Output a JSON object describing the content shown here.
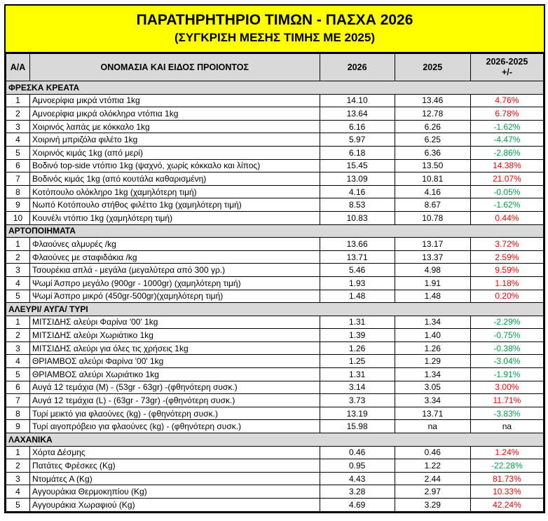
{
  "header": {
    "title": "ΠΑΡΑΤΗΡΗΤΗΡΙΟ ΤΙΜΩΝ - ΠΑΣΧΑ 2026",
    "subtitle": "(ΣΥΓΚΡΙΣΗ ΜΕΣΗΣ ΤΙΜΗΣ ΜΕ 2025)"
  },
  "columns": {
    "aa": "Α/Α",
    "name": "ΟΝΟΜΑΣΙΑ ΚΑΙ ΕΙΔΟΣ ΠΡΟΙΟΝΤΟΣ",
    "y2026": "2026",
    "y2025": "2025",
    "diff_line1": "2026-2025",
    "diff_line2": "+/-"
  },
  "colors": {
    "increase": "#ff0000",
    "decrease": "#00a04a",
    "title_bg": "#ffff00",
    "header_bg": "#d9d9d9"
  },
  "categories": [
    {
      "name": "ΦΡΕΣΚΑ ΚΡΕΑΤΑ",
      "items": [
        {
          "aa": "1",
          "name": "Αμνοερίφια μικρά ντόπια 1kg",
          "v2026": "14.10",
          "v2025": "13.46",
          "diff": "4.76%",
          "trend": "pos"
        },
        {
          "aa": "2",
          "name": "Αμνοερίφια μικρά ολόκληρα ντόπια 1kg",
          "v2026": "13.64",
          "v2025": "12.78",
          "diff": "6.78%",
          "trend": "pos"
        },
        {
          "aa": "3",
          "name": "Χοιρινός λαπάς με κόκκαλο 1kg",
          "v2026": "6.16",
          "v2025": "6.26",
          "diff": "-1.62%",
          "trend": "neg"
        },
        {
          "aa": "4",
          "name": "Χοιρινή μπριζόλα φιλέτο 1kg",
          "v2026": "5.97",
          "v2025": "6.25",
          "diff": "-4.47%",
          "trend": "neg"
        },
        {
          "aa": "5",
          "name": "Χοιρινός κιμάς 1kg (από μερί)",
          "v2026": "6.18",
          "v2025": "6.36",
          "diff": "-2.86%",
          "trend": "neg"
        },
        {
          "aa": "6",
          "name": "Βοδινό top-side ντόπιο 1kg (ψαχνό, χωρίς κόκκαλο και λίπος)",
          "v2026": "15.45",
          "v2025": "13.50",
          "diff": "14.38%",
          "trend": "pos"
        },
        {
          "aa": "7",
          "name": "Βοδινός κιμάς 1kg (από κουτάλα καθαρισμένη)",
          "v2026": "13.09",
          "v2025": "10.81",
          "diff": "21.07%",
          "trend": "pos"
        },
        {
          "aa": "8",
          "name": "Κοτόπουλο ολόκληρο 1kg (χαμηλότερη τιμή)",
          "v2026": "4.16",
          "v2025": "4.16",
          "diff": "-0.05%",
          "trend": "neg"
        },
        {
          "aa": "9",
          "name": "Νωπό Κοτόπουλο στήθος φιλέττο 1kg (χαμηλότερη τιμή)",
          "v2026": "8.53",
          "v2025": "8.67",
          "diff": "-1.62%",
          "trend": "neg"
        },
        {
          "aa": "10",
          "name": "Κουνέλι ντόπιο 1kg (χαμηλότερη τιμή)",
          "v2026": "10.83",
          "v2025": "10.78",
          "diff": "0.44%",
          "trend": "pos"
        }
      ]
    },
    {
      "name": "ΑΡΤΟΠΟΙΗΜΑΤΑ",
      "items": [
        {
          "aa": "1",
          "name": "Φλαούνες αλμυρές /kg",
          "v2026": "13.66",
          "v2025": "13.17",
          "diff": "3.72%",
          "trend": "pos"
        },
        {
          "aa": "2",
          "name": "Φλαούνες με σταφιδάκια /kg",
          "v2026": "13.71",
          "v2025": "13.37",
          "diff": "2.59%",
          "trend": "pos"
        },
        {
          "aa": "3",
          "name": "Τσουρέκια απλά - μεγάλα (μεγαλύτερα από 300 γρ.)",
          "v2026": "5.46",
          "v2025": "4.98",
          "diff": "9.59%",
          "trend": "pos"
        },
        {
          "aa": "4",
          "name": "Ψωμί Άσπρο μεγάλο (900gr - 1000gr) (χαμηλότερη τιμή)",
          "v2026": "1.93",
          "v2025": "1.91",
          "diff": "1.18%",
          "trend": "pos"
        },
        {
          "aa": "5",
          "name": "Ψωμί Άσπρο μικρό (450gr-500gr)(χαμηλότερη τιμή)",
          "v2026": "1.48",
          "v2025": "1.48",
          "diff": "0.20%",
          "trend": "pos"
        }
      ]
    },
    {
      "name": "ΑΛΕΥΡΙ/ ΑΥΓΑ/ ΤΥΡΙ",
      "items": [
        {
          "aa": "1",
          "name": "ΜΙΤΣΙΔΗΣ αλεύρι Φαρίνα '00' 1kg",
          "v2026": "1.31",
          "v2025": "1.34",
          "diff": "-2.29%",
          "trend": "neg"
        },
        {
          "aa": "2",
          "name": "ΜΙΤΣΙΔΗΣ αλεύρι Χωριάτικο 1kg",
          "v2026": "1.39",
          "v2025": "1.40",
          "diff": "-0.75%",
          "trend": "neg"
        },
        {
          "aa": "3",
          "name": "ΜΙΤΣΙΔΗΣ αλεύρι για όλες τις χρήσεις 1kg",
          "v2026": "1.26",
          "v2025": "1.26",
          "diff": "-0.38%",
          "trend": "neg"
        },
        {
          "aa": "4",
          "name": "ΘΡΙΑΜΒΟΣ αλεύρι Φαρίνα '00' 1kg",
          "v2026": "1.25",
          "v2025": "1.29",
          "diff": "-3.04%",
          "trend": "neg"
        },
        {
          "aa": "5",
          "name": "ΘΡΙΑΜΒΟΣ αλεύρι Χωριάτικο 1kg",
          "v2026": "1.31",
          "v2025": "1.34",
          "diff": "-1.91%",
          "trend": "neg"
        },
        {
          "aa": "6",
          "name": "Αυγά 12 τεμάχια (M) - (53gr - 63gr) -(φθηνότερη συσκ.)",
          "v2026": "3.14",
          "v2025": "3.05",
          "diff": "3.00%",
          "trend": "pos"
        },
        {
          "aa": "7",
          "name": "Αυγά 12 τεμάχια (L) - (63gr - 73gr) -(φθηνότερη συσκ.)",
          "v2026": "3.73",
          "v2025": "3.34",
          "diff": "11.71%",
          "trend": "pos"
        },
        {
          "aa": "8",
          "name": "Τυρί μεικτό για φλαούνες (kg) - (φθηνότερη συσκ.)",
          "v2026": "13.19",
          "v2025": "13.71",
          "diff": "-3.83%",
          "trend": "neg"
        },
        {
          "aa": "9",
          "name": "Τυρί αιγοπρόβειο για φλαούνες (kg) - (φθηνότερη συσκ.)",
          "v2026": "15.98",
          "v2025": "na",
          "diff": "na",
          "trend": "neu"
        }
      ]
    },
    {
      "name": "ΛΑΧΑΝΙΚΑ",
      "items": [
        {
          "aa": "1",
          "name": "Χόρτα Δέσμης",
          "v2026": "0.46",
          "v2025": "0.46",
          "diff": "1.24%",
          "trend": "pos"
        },
        {
          "aa": "2",
          "name": "Πατάτες Φρέσκες (Kg)",
          "v2026": "0.95",
          "v2025": "1.22",
          "diff": "-22.28%",
          "trend": "neg"
        },
        {
          "aa": "3",
          "name": "Ντομάτες Α (Kg)",
          "v2026": "4.43",
          "v2025": "2.44",
          "diff": "81.73%",
          "trend": "pos"
        },
        {
          "aa": "4",
          "name": "Αγγουράκια Θερμοκηπίου (Kg)",
          "v2026": "3.28",
          "v2025": "2.97",
          "diff": "10.33%",
          "trend": "pos"
        },
        {
          "aa": "5",
          "name": "Αγγουράκια Χωραφιού (Kg)",
          "v2026": "4.69",
          "v2025": "3.29",
          "diff": "42.24%",
          "trend": "pos"
        }
      ]
    }
  ]
}
